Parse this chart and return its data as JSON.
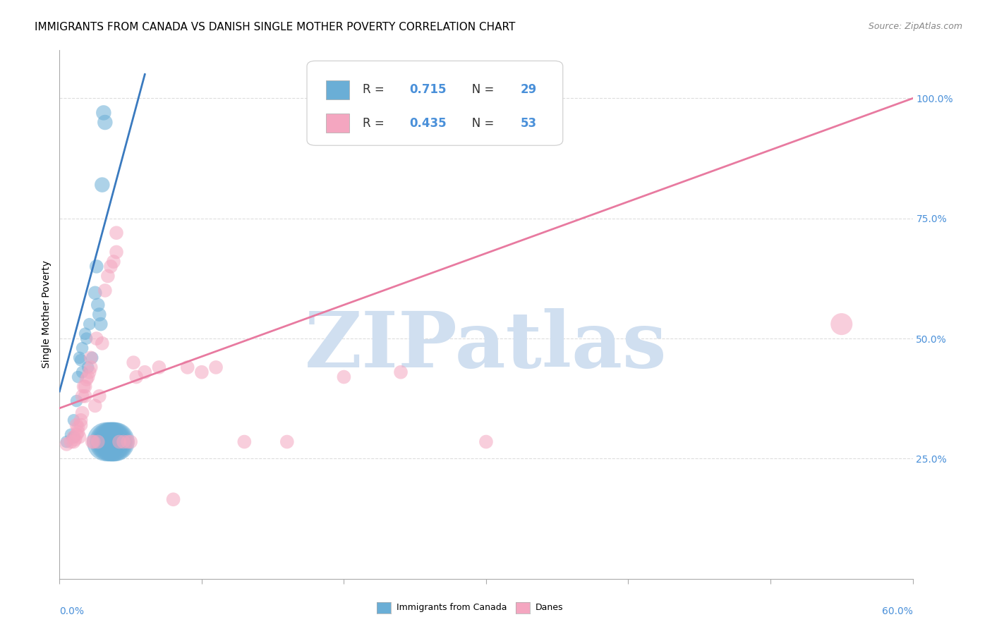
{
  "title": "IMMIGRANTS FROM CANADA VS DANISH SINGLE MOTHER POVERTY CORRELATION CHART",
  "source": "Source: ZipAtlas.com",
  "ylabel": "Single Mother Poverty",
  "ytick_labels": [
    "25.0%",
    "50.0%",
    "75.0%",
    "100.0%"
  ],
  "ytick_values": [
    0.25,
    0.5,
    0.75,
    1.0
  ],
  "xlim": [
    0.0,
    0.6
  ],
  "ylim": [
    0.0,
    1.1
  ],
  "legend_blue_R_val": "0.715",
  "legend_blue_N_val": "29",
  "legend_pink_R_val": "0.435",
  "legend_pink_N_val": "53",
  "watermark": "ZIPatlas",
  "blue_scatter": [
    [
      0.005,
      0.285
    ],
    [
      0.008,
      0.3
    ],
    [
      0.01,
      0.295
    ],
    [
      0.01,
      0.33
    ],
    [
      0.012,
      0.37
    ],
    [
      0.013,
      0.42
    ],
    [
      0.014,
      0.46
    ],
    [
      0.015,
      0.455
    ],
    [
      0.016,
      0.48
    ],
    [
      0.016,
      0.43
    ],
    [
      0.018,
      0.51
    ],
    [
      0.019,
      0.5
    ],
    [
      0.02,
      0.44
    ],
    [
      0.021,
      0.53
    ],
    [
      0.023,
      0.46
    ],
    [
      0.025,
      0.595
    ],
    [
      0.026,
      0.65
    ],
    [
      0.027,
      0.57
    ],
    [
      0.028,
      0.55
    ],
    [
      0.029,
      0.53
    ],
    [
      0.03,
      0.82
    ],
    [
      0.031,
      0.97
    ],
    [
      0.032,
      0.95
    ],
    [
      0.033,
      0.285
    ],
    [
      0.035,
      0.285
    ],
    [
      0.036,
      0.285
    ],
    [
      0.037,
      0.285
    ],
    [
      0.038,
      0.285
    ],
    [
      0.039,
      0.285
    ]
  ],
  "blue_sizes": [
    8,
    8,
    8,
    8,
    8,
    8,
    8,
    8,
    8,
    8,
    8,
    8,
    8,
    8,
    8,
    10,
    10,
    10,
    10,
    10,
    12,
    12,
    12,
    80,
    80,
    80,
    80,
    80,
    80
  ],
  "pink_scatter": [
    [
      0.005,
      0.28
    ],
    [
      0.008,
      0.285
    ],
    [
      0.01,
      0.295
    ],
    [
      0.01,
      0.285
    ],
    [
      0.011,
      0.29
    ],
    [
      0.012,
      0.32
    ],
    [
      0.012,
      0.3
    ],
    [
      0.013,
      0.305
    ],
    [
      0.013,
      0.315
    ],
    [
      0.014,
      0.295
    ],
    [
      0.015,
      0.32
    ],
    [
      0.015,
      0.33
    ],
    [
      0.016,
      0.345
    ],
    [
      0.016,
      0.38
    ],
    [
      0.017,
      0.4
    ],
    [
      0.018,
      0.38
    ],
    [
      0.018,
      0.4
    ],
    [
      0.019,
      0.415
    ],
    [
      0.02,
      0.42
    ],
    [
      0.021,
      0.43
    ],
    [
      0.022,
      0.44
    ],
    [
      0.022,
      0.46
    ],
    [
      0.023,
      0.285
    ],
    [
      0.024,
      0.285
    ],
    [
      0.025,
      0.36
    ],
    [
      0.026,
      0.5
    ],
    [
      0.027,
      0.285
    ],
    [
      0.028,
      0.38
    ],
    [
      0.03,
      0.49
    ],
    [
      0.032,
      0.6
    ],
    [
      0.034,
      0.63
    ],
    [
      0.036,
      0.65
    ],
    [
      0.038,
      0.66
    ],
    [
      0.04,
      0.68
    ],
    [
      0.04,
      0.72
    ],
    [
      0.042,
      0.285
    ],
    [
      0.045,
      0.285
    ],
    [
      0.048,
      0.285
    ],
    [
      0.05,
      0.285
    ],
    [
      0.052,
      0.45
    ],
    [
      0.054,
      0.42
    ],
    [
      0.06,
      0.43
    ],
    [
      0.07,
      0.44
    ],
    [
      0.08,
      0.165
    ],
    [
      0.09,
      0.44
    ],
    [
      0.1,
      0.43
    ],
    [
      0.11,
      0.44
    ],
    [
      0.13,
      0.285
    ],
    [
      0.16,
      0.285
    ],
    [
      0.2,
      0.42
    ],
    [
      0.24,
      0.43
    ],
    [
      0.3,
      0.285
    ],
    [
      0.55,
      0.53
    ]
  ],
  "pink_sizes": [
    10,
    10,
    10,
    10,
    10,
    10,
    10,
    10,
    10,
    10,
    10,
    10,
    10,
    10,
    10,
    10,
    10,
    10,
    10,
    10,
    10,
    10,
    10,
    10,
    10,
    10,
    10,
    10,
    10,
    10,
    10,
    10,
    10,
    10,
    10,
    10,
    10,
    10,
    10,
    10,
    10,
    10,
    10,
    10,
    10,
    10,
    10,
    10,
    10,
    10,
    10,
    10,
    25
  ],
  "blue_color": "#6aaed6",
  "pink_color": "#f4a6c0",
  "blue_line_color": "#3a7abf",
  "pink_line_color": "#e87aa0",
  "grid_color": "#dddddd",
  "axis_color": "#aaaaaa",
  "background": "#ffffff",
  "title_fontsize": 11,
  "source_fontsize": 9,
  "watermark_color": "#d0dff0",
  "ylabel_fontsize": 10,
  "tick_fontsize": 9,
  "legend_fontsize": 12,
  "blue_regr": [
    0.0,
    0.39,
    0.06,
    1.05
  ],
  "pink_regr": [
    0.0,
    0.355,
    0.6,
    1.0
  ]
}
